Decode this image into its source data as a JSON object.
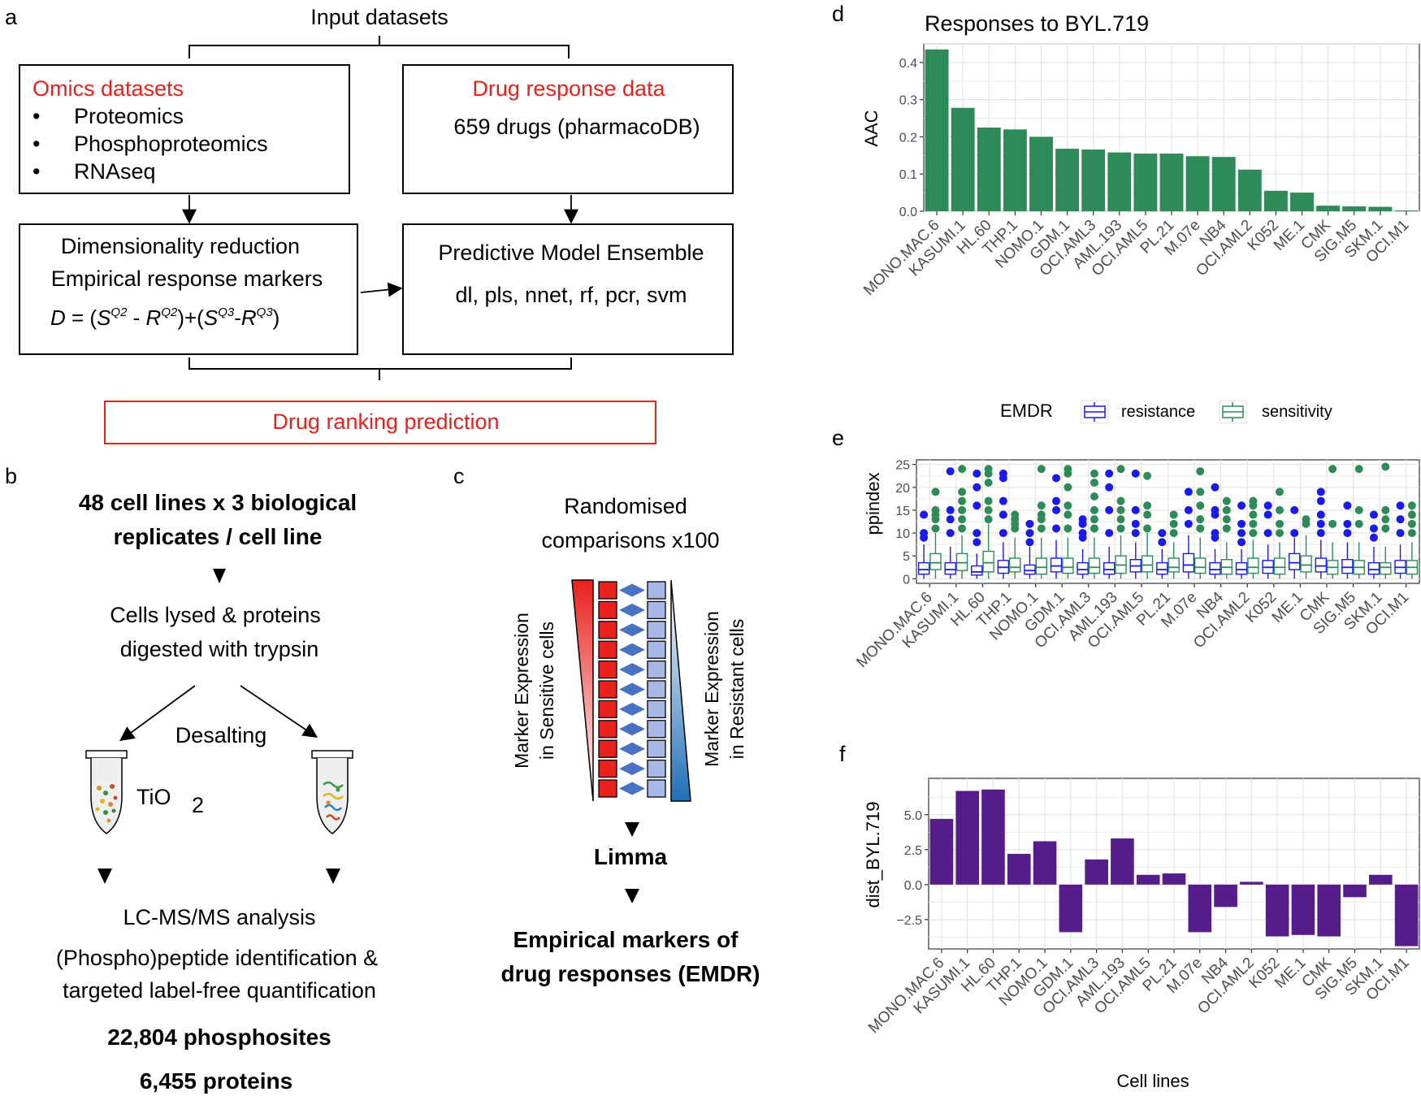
{
  "panels": {
    "a": "a",
    "b": "b",
    "c": "c",
    "d": "d",
    "e": "e",
    "f": "f"
  },
  "panel_a": {
    "input_title": "Input datasets",
    "omics_title": "Omics datasets",
    "omics_items": [
      "Proteomics",
      "Phosphoproteomics",
      "RNAseq"
    ],
    "drug_title": "Drug response data",
    "drug_text": "659 drugs (pharmacoDB)",
    "dimred_line1": "Dimensionality reduction",
    "dimred_line2": "Empirical response markers",
    "formula": "D = (SQ2 - RQ2)+(SQ3-RQ3)",
    "model_title": "Predictive Model Ensemble",
    "model_list": "dl, pls, nnet, rf, pcr, svm",
    "ranking": "Drug ranking prediction",
    "red_color": "#e8211d"
  },
  "panel_b": {
    "line1": "48 cell lines x 3 biological",
    "line2": "replicates / cell line",
    "lysed1": "Cells lysed & proteins",
    "lysed2": "digested with trypsin",
    "desalting": "Desalting",
    "tio2": "TiO",
    "tio2_sub": "2",
    "lcms": "LC-MS/MS analysis",
    "ident1": "(Phospho)peptide identification &",
    "ident2": "targeted  label-free quantification",
    "phosphosites": "22,804 phosphosites",
    "proteins": "6,455 proteins"
  },
  "panel_c": {
    "title1": "Randomised",
    "title2": "comparisons x100",
    "left1": "Marker Expression",
    "left2": "in Sensitive cells",
    "right1": "Marker Expression",
    "right2": "in Resistant cells",
    "limma": "Limma",
    "emdr1": "Empirical markers of",
    "emdr2": "drug responses (EMDR)",
    "sensitive_color": "#e8211d",
    "resistant_color": "#2f6db5"
  },
  "chart_data": [
    {
      "type": "bar",
      "panel": "d",
      "title": "Responses to BYL.719",
      "xlabel": "",
      "ylabel": "AAC",
      "ylim": [
        0,
        0.45
      ],
      "yticks": [
        "0.0",
        "0.1",
        "0.2",
        "0.3",
        "0.4"
      ],
      "color": "#2e8b57",
      "categories": [
        "MONO.MAC.6",
        "KASUMI.1",
        "HL.60",
        "THP.1",
        "NOMO.1",
        "GDM.1",
        "OCI.AML3",
        "AML.193",
        "OCI.AML5",
        "PL.21",
        "M.07e",
        "NB4",
        "OCI.AML2",
        "K052",
        "ME.1",
        "CMK",
        "SIG.M5",
        "SKM.1",
        "OCI.M1"
      ],
      "values": [
        0.435,
        0.278,
        0.225,
        0.22,
        0.2,
        0.168,
        0.166,
        0.158,
        0.155,
        0.155,
        0.148,
        0.146,
        0.112,
        0.055,
        0.05,
        0.015,
        0.013,
        0.012,
        0.002
      ]
    },
    {
      "type": "box",
      "panel": "e",
      "xlabel": "",
      "ylabel": "ppindex",
      "ylim": [
        -1,
        26
      ],
      "yticks": [
        "0",
        "5",
        "10",
        "15",
        "20",
        "25"
      ],
      "legend_title": "EMDR",
      "legend_position": "top",
      "categories": [
        "MONO.MAC.6",
        "KASUMI.1",
        "HL.60",
        "THP.1",
        "NOMO.1",
        "GDM.1",
        "OCI.AML3",
        "AML.193",
        "OCI.AML5",
        "PL.21",
        "M.07e",
        "NB4",
        "OCI.AML2",
        "K052",
        "ME.1",
        "CMK",
        "SIG.M5",
        "SKM.1",
        "OCI.M1"
      ],
      "series": [
        {
          "name": "resistance",
          "color": "#1a1aee",
          "q1": [
            1,
            1,
            0.8,
            1.2,
            1,
            1.5,
            1,
            1,
            1.5,
            1,
            1.5,
            1,
            1,
            1.2,
            2,
            1.5,
            1.2,
            1,
            1.2
          ],
          "median": [
            2,
            2,
            1.5,
            2.5,
            1.8,
            2.8,
            2,
            2,
            2.8,
            2,
            3,
            2,
            2,
            2.5,
            3.5,
            2.8,
            2.5,
            2,
            2.5
          ],
          "q3": [
            3.5,
            3.5,
            2.8,
            4,
            3,
            4.5,
            3.5,
            3.5,
            4.2,
            3.5,
            5.5,
            3.5,
            3.5,
            4,
            5.5,
            4.5,
            4.2,
            3.5,
            4
          ],
          "whisker_high": [
            7.5,
            7,
            5.5,
            8,
            7,
            8.5,
            6.5,
            7,
            8,
            6.5,
            9.5,
            6.5,
            6.5,
            7.5,
            9,
            8.5,
            8,
            7,
            7.5
          ],
          "outliers": [
            [
              9,
              10,
              14
            ],
            [
              10,
              13,
              15,
              23.5
            ],
            [
              8,
              10,
              16,
              20,
              23
            ],
            [
              10,
              14,
              17,
              22,
              23
            ],
            [
              8,
              10,
              12
            ],
            [
              11,
              15,
              17,
              22
            ],
            [
              9,
              10,
              12,
              13
            ],
            [
              10,
              15,
              20,
              23
            ],
            [
              10,
              12,
              15,
              23
            ],
            [
              8,
              10
            ],
            [
              12,
              15,
              19
            ],
            [
              9,
              10,
              14,
              15,
              20
            ],
            [
              8,
              10,
              12,
              16
            ],
            [
              10,
              14,
              16
            ],
            [
              10,
              15
            ],
            [
              10,
              12,
              14,
              17,
              19
            ],
            [
              10,
              12,
              16
            ],
            [
              9,
              11,
              14
            ],
            [
              10,
              13,
              16
            ]
          ]
        },
        {
          "name": "sensitivity",
          "color": "#2e8b57",
          "q1": [
            2,
            1.8,
            1.5,
            1.5,
            1,
            1.2,
            1.2,
            1.2,
            1.5,
            1.5,
            1.2,
            1,
            1.2,
            1,
            1.5,
            1,
            1,
            1,
            1
          ],
          "median": [
            3.5,
            3.5,
            3.5,
            2.5,
            2.5,
            2.5,
            2.5,
            3,
            3,
            2.5,
            2.5,
            2.5,
            2.5,
            2.5,
            3,
            2.5,
            2.5,
            2.5,
            2.5
          ],
          "q3": [
            5.5,
            5.5,
            6,
            4.5,
            4.5,
            4.5,
            4.5,
            5,
            5,
            4.5,
            4.5,
            4.2,
            4.5,
            4.5,
            5,
            4,
            4,
            3.5,
            4
          ],
          "whisker_high": [
            10,
            9.5,
            12,
            9,
            9,
            9,
            9,
            9.5,
            10,
            8,
            9,
            8,
            8.5,
            8,
            9.5,
            8,
            8,
            7,
            8
          ],
          "outliers": [
            [
              11,
              13,
              14,
              15,
              19
            ],
            [
              11,
              13,
              15,
              17,
              19,
              24
            ],
            [
              13,
              15,
              17,
              21,
              23,
              24
            ],
            [
              11,
              12,
              13,
              14
            ],
            [
              11,
              13,
              14,
              16,
              24
            ],
            [
              11,
              14,
              16,
              20,
              23,
              24
            ],
            [
              11,
              13,
              15,
              18,
              21,
              23
            ],
            [
              11,
              13,
              15,
              17,
              24
            ],
            [
              11,
              14,
              16,
              22.5
            ],
            [
              10,
              12,
              14
            ],
            [
              11,
              13,
              16,
              19,
              23.5
            ],
            [
              11,
              13,
              15,
              17
            ],
            [
              10,
              12,
              14,
              16,
              17
            ],
            [
              10,
              12,
              15,
              19
            ],
            [
              12,
              13
            ],
            [
              12,
              24
            ],
            [
              12,
              15,
              24
            ],
            [
              11,
              13,
              15,
              24.5
            ],
            [
              10,
              12,
              14,
              16
            ]
          ]
        }
      ]
    },
    {
      "type": "bar",
      "panel": "f",
      "xlabel": "Cell lines",
      "ylabel": "dist_BYL.719",
      "ylim": [
        -4.6,
        7.6
      ],
      "yticks": [
        "-2.5",
        "0.0",
        "2.5",
        "5.0"
      ],
      "color": "#561c8c",
      "categories": [
        "MONO.MAC.6",
        "KASUMI.1",
        "HL.60",
        "THP.1",
        "NOMO.1",
        "GDM.1",
        "OCI.AML3",
        "AML.193",
        "OCI.AML5",
        "PL.21",
        "M.07e",
        "NB4",
        "OCI.AML2",
        "K052",
        "ME.1",
        "CMK",
        "SIG.M5",
        "SKM.1",
        "OCI.M1"
      ],
      "values": [
        4.7,
        6.7,
        6.8,
        2.2,
        3.1,
        -3.4,
        1.8,
        3.3,
        0.7,
        0.8,
        -3.4,
        -1.6,
        0.2,
        -3.7,
        -3.6,
        -3.7,
        -0.9,
        0.7,
        -4.4
      ]
    }
  ]
}
